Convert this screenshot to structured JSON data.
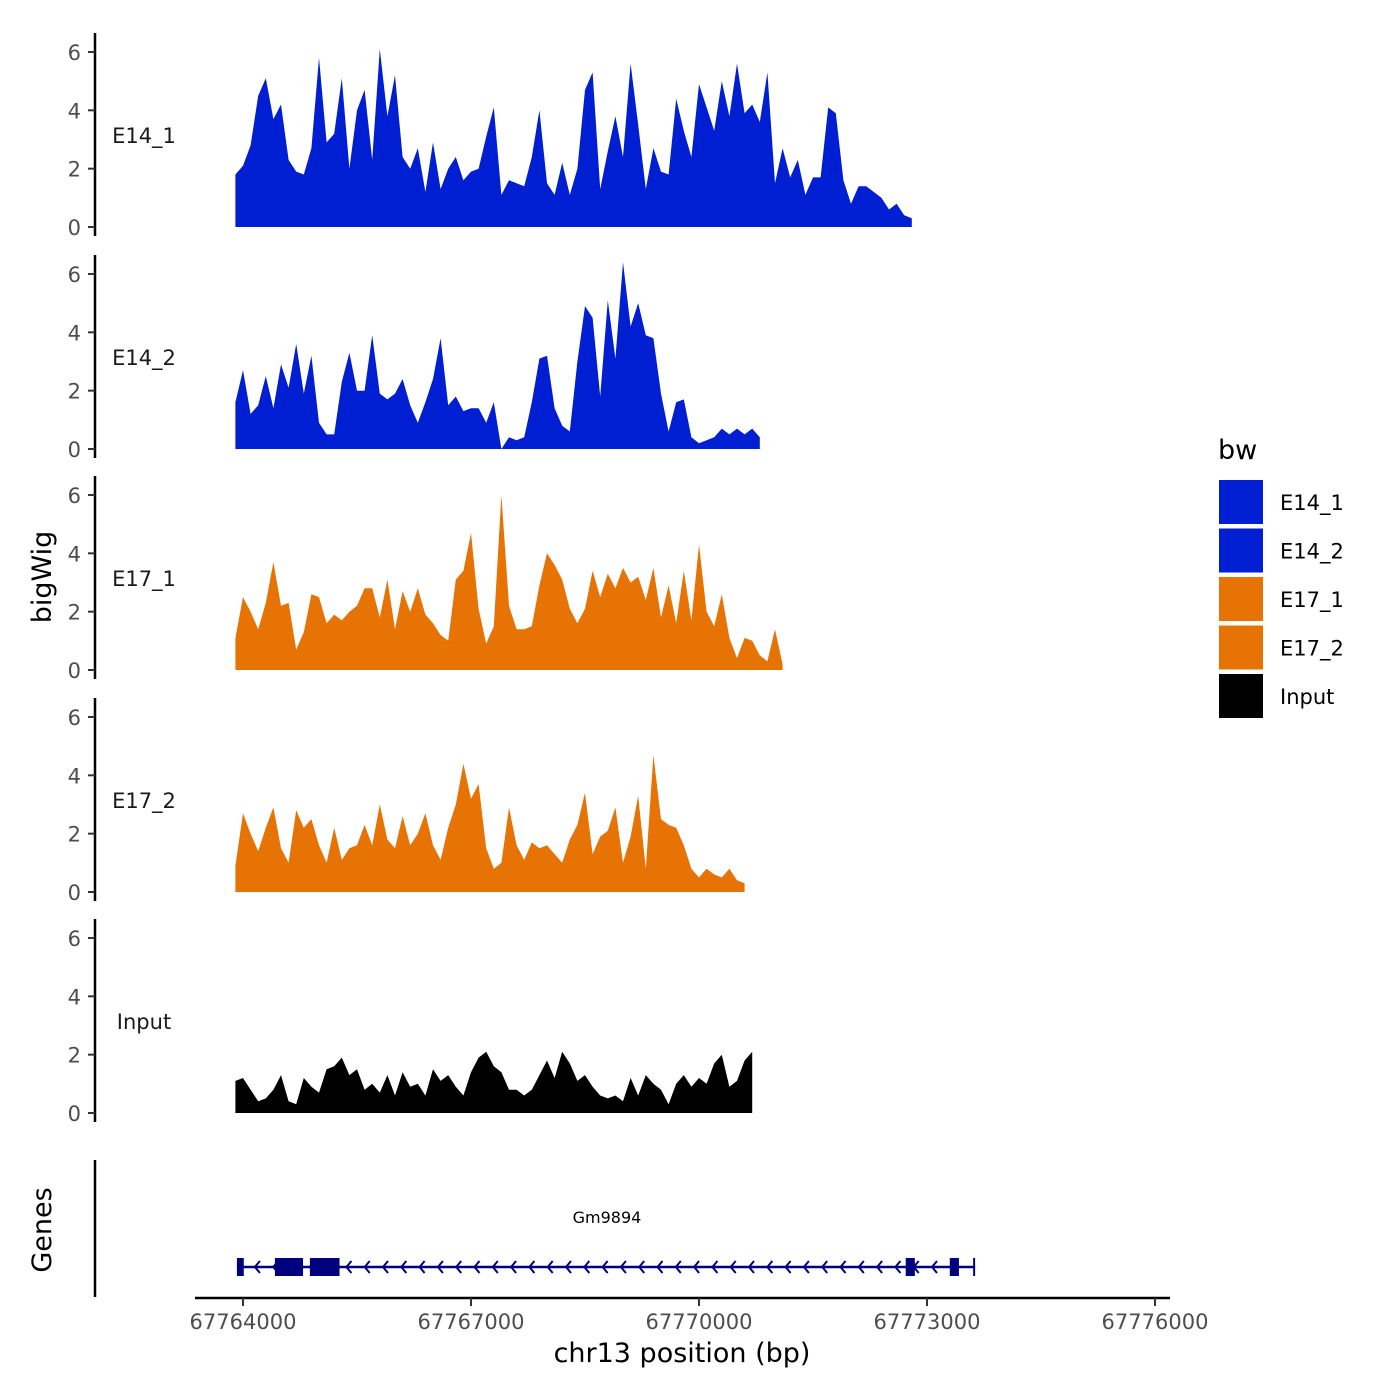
{
  "chart_data": {
    "type": "area",
    "title": "",
    "xlabel": "chr13 position (bp)",
    "ylabel": "bigWig",
    "genes_label": "Genes",
    "xlim": [
      67763900,
      67775600
    ],
    "ylim": [
      0,
      6.6
    ],
    "x_ticks": [
      {
        "value": 67764000,
        "label": "67764000"
      },
      {
        "value": 67767000,
        "label": "67767000"
      },
      {
        "value": 67770000,
        "label": "67770000"
      },
      {
        "value": 67773000,
        "label": "67773000"
      },
      {
        "value": 67776000,
        "label": "67776000"
      }
    ],
    "y_ticks": [
      {
        "value": 0,
        "label": "0"
      },
      {
        "value": 2,
        "label": "2"
      },
      {
        "value": 4,
        "label": "4"
      },
      {
        "value": 6,
        "label": "6"
      }
    ],
    "legend": {
      "title": "bw",
      "entries": [
        {
          "name": "E14_1",
          "color": "#001ed2"
        },
        {
          "name": "E14_2",
          "color": "#001ed2"
        },
        {
          "name": "E17_1",
          "color": "#e87305"
        },
        {
          "name": "E17_2",
          "color": "#e87305"
        },
        {
          "name": "Input",
          "color": "#000000"
        }
      ]
    },
    "series": [
      {
        "name": "E14_1",
        "color": "#001ed2",
        "x_start": 67763900,
        "step": 100,
        "values": [
          1.8,
          2.1,
          2.8,
          4.5,
          5.1,
          3.7,
          4.2,
          2.3,
          1.9,
          1.8,
          2.7,
          5.8,
          2.9,
          3.2,
          5.1,
          2.0,
          4.0,
          4.7,
          2.3,
          6.1,
          3.8,
          5.2,
          2.4,
          2.0,
          2.7,
          1.2,
          2.9,
          1.3,
          2.0,
          2.4,
          1.6,
          1.9,
          2.0,
          3.1,
          4.1,
          1.1,
          1.6,
          1.5,
          1.4,
          2.4,
          4.0,
          1.5,
          1.1,
          2.2,
          1.1,
          2.0,
          4.7,
          5.3,
          1.3,
          2.6,
          3.8,
          2.4,
          5.6,
          3.5,
          1.3,
          2.7,
          1.9,
          1.8,
          4.4,
          3.3,
          2.4,
          4.9,
          4.1,
          3.3,
          5.0,
          3.8,
          5.6,
          3.9,
          4.2,
          3.6,
          5.3,
          1.5,
          2.7,
          1.7,
          2.3,
          1.1,
          1.7,
          1.7,
          4.1,
          3.9,
          1.6,
          0.8,
          1.4,
          1.4,
          1.2,
          1.0,
          0.6,
          0.8,
          0.4,
          0.3
        ]
      },
      {
        "name": "E14_2",
        "color": "#001ed2",
        "x_start": 67763900,
        "step": 100,
        "values": [
          1.6,
          2.7,
          1.2,
          1.5,
          2.5,
          1.4,
          2.9,
          2.1,
          3.6,
          1.9,
          3.2,
          0.9,
          0.5,
          0.5,
          2.3,
          3.3,
          2.0,
          2.0,
          3.9,
          1.9,
          1.7,
          1.9,
          2.4,
          1.5,
          0.9,
          1.6,
          2.4,
          3.8,
          1.5,
          1.8,
          1.3,
          1.4,
          1.4,
          0.9,
          1.6,
          0.0,
          0.4,
          0.3,
          0.4,
          1.6,
          3.1,
          3.2,
          1.4,
          0.8,
          0.6,
          3.0,
          4.9,
          4.5,
          1.8,
          5.1,
          3.1,
          6.4,
          4.2,
          5.0,
          3.9,
          3.8,
          1.9,
          0.6,
          1.6,
          1.7,
          0.4,
          0.2,
          0.3,
          0.4,
          0.7,
          0.5,
          0.7,
          0.5,
          0.7,
          0.4
        ]
      },
      {
        "name": "E17_1",
        "color": "#e87305",
        "x_start": 67763900,
        "step": 100,
        "values": [
          1.1,
          2.5,
          2.0,
          1.4,
          2.3,
          3.7,
          2.2,
          2.3,
          0.7,
          1.3,
          2.6,
          2.5,
          1.6,
          1.9,
          1.7,
          2.0,
          2.2,
          2.8,
          2.8,
          1.8,
          3.1,
          1.4,
          2.7,
          2.0,
          2.8,
          1.9,
          1.6,
          1.2,
          1.0,
          3.1,
          3.4,
          4.7,
          2.1,
          0.9,
          1.5,
          6.0,
          2.2,
          1.4,
          1.4,
          1.5,
          2.9,
          4.0,
          3.6,
          3.1,
          2.1,
          1.6,
          2.1,
          3.4,
          2.5,
          3.3,
          2.8,
          3.5,
          3.0,
          3.2,
          2.4,
          3.5,
          1.8,
          2.9,
          1.6,
          3.4,
          1.7,
          4.3,
          2.0,
          1.5,
          2.6,
          1.1,
          0.4,
          1.1,
          1.0,
          0.5,
          0.3,
          1.4,
          0.2
        ]
      },
      {
        "name": "E17_2",
        "color": "#e87305",
        "x_start": 67763900,
        "step": 100,
        "values": [
          0.9,
          2.7,
          2.0,
          1.4,
          2.2,
          2.9,
          1.5,
          1.0,
          2.8,
          2.2,
          2.5,
          1.6,
          1.0,
          2.2,
          1.1,
          1.5,
          1.6,
          2.3,
          1.6,
          3.0,
          1.8,
          1.5,
          2.6,
          1.6,
          2.0,
          2.7,
          1.6,
          1.1,
          2.2,
          3.0,
          4.4,
          3.2,
          3.7,
          1.5,
          0.8,
          1.0,
          2.9,
          1.6,
          1.1,
          1.7,
          1.5,
          1.6,
          1.3,
          1.0,
          1.8,
          2.3,
          3.4,
          1.3,
          1.9,
          2.1,
          2.9,
          1.0,
          1.9,
          3.3,
          0.8,
          4.7,
          2.5,
          2.3,
          2.2,
          1.6,
          0.8,
          0.5,
          0.8,
          0.6,
          0.5,
          0.8,
          0.4,
          0.3
        ]
      },
      {
        "name": "Input",
        "color": "#000000",
        "x_start": 67763900,
        "step": 100,
        "values": [
          1.1,
          1.2,
          0.8,
          0.4,
          0.5,
          0.8,
          1.3,
          0.4,
          0.3,
          1.2,
          0.9,
          0.7,
          1.5,
          1.6,
          1.9,
          1.3,
          1.5,
          0.8,
          1.0,
          0.7,
          1.3,
          0.6,
          1.4,
          0.9,
          1.0,
          0.6,
          1.5,
          1.1,
          1.3,
          0.9,
          0.6,
          1.4,
          1.9,
          2.1,
          1.6,
          1.4,
          0.8,
          0.8,
          0.6,
          0.8,
          1.3,
          1.8,
          1.2,
          2.1,
          1.7,
          1.1,
          1.3,
          0.9,
          0.6,
          0.5,
          0.6,
          0.4,
          1.2,
          0.6,
          1.3,
          1.0,
          0.8,
          0.3,
          1.0,
          1.3,
          0.9,
          1.2,
          1.0,
          1.7,
          2.0,
          0.9,
          1.1,
          1.8,
          2.1
        ]
      }
    ],
    "genes": [
      {
        "name": "Gm9894",
        "start": 67763920,
        "end": 67773620,
        "strand": "-",
        "exons": [
          [
            67763920,
            67764010
          ],
          [
            67764420,
            67764790
          ],
          [
            67764880,
            67765270
          ],
          [
            67772720,
            67772840
          ],
          [
            67773300,
            67773420
          ]
        ]
      }
    ]
  }
}
